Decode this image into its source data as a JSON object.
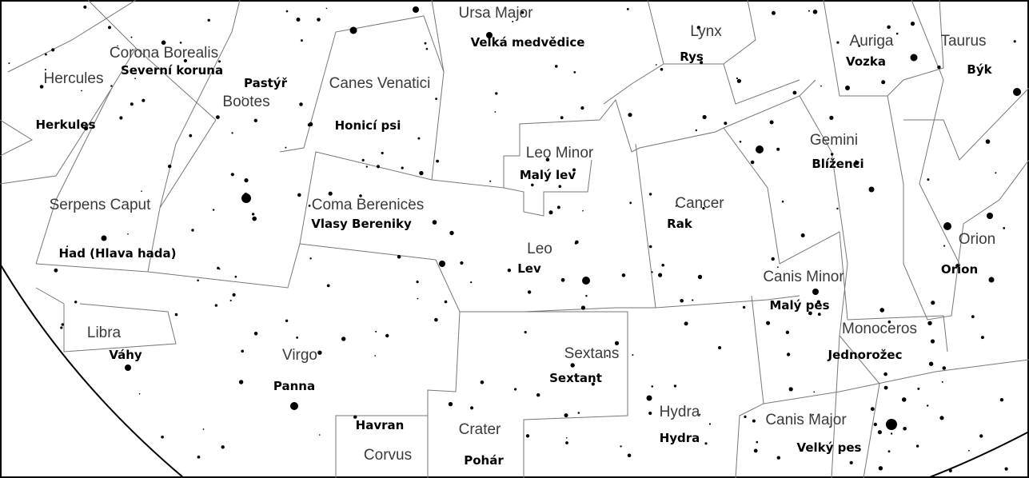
{
  "constellations": [
    {
      "latin": "Ursa Major",
      "czech": "Velká medvědice"
    },
    {
      "latin": "Lynx",
      "czech": "Rys"
    },
    {
      "latin": "Auriga",
      "czech": "Vozka"
    },
    {
      "latin": "Taurus",
      "czech": "Býk"
    },
    {
      "latin": "Corona Borealis",
      "czech": "Severní koruna"
    },
    {
      "latin": "Hercules",
      "czech": "Herkules"
    },
    {
      "latin": "Bootes",
      "czech": "Pastýř"
    },
    {
      "latin": "Canes Venatici",
      "czech": "Honicí psi"
    },
    {
      "latin": "Leo Minor",
      "czech": "Malý lev"
    },
    {
      "latin": "Gemini",
      "czech": "Blíženci"
    },
    {
      "latin": "Serpens Caput",
      "czech": "Had (Hlava hada)"
    },
    {
      "latin": "Coma Berenices",
      "czech": "Vlasy Bereniky"
    },
    {
      "latin": "Cancer",
      "czech": "Rak"
    },
    {
      "latin": "Orion",
      "czech": "Orion"
    },
    {
      "latin": "Leo",
      "czech": "Lev"
    },
    {
      "latin": "Canis Minor",
      "czech": "Malý pes"
    },
    {
      "latin": "Libra",
      "czech": "Váhy"
    },
    {
      "latin": "Monoceros",
      "czech": "Jednorožec"
    },
    {
      "latin": "Virgo",
      "czech": "Panna"
    },
    {
      "latin": "Sextans",
      "czech": "Sextant"
    },
    {
      "latin": "Hydra",
      "czech": "Hydra"
    },
    {
      "latin": "Canis Major",
      "czech": "Velký pes"
    },
    {
      "latin": "Corvus",
      "czech": "Havran"
    },
    {
      "latin": "Crater",
      "czech": "Pohár"
    }
  ]
}
